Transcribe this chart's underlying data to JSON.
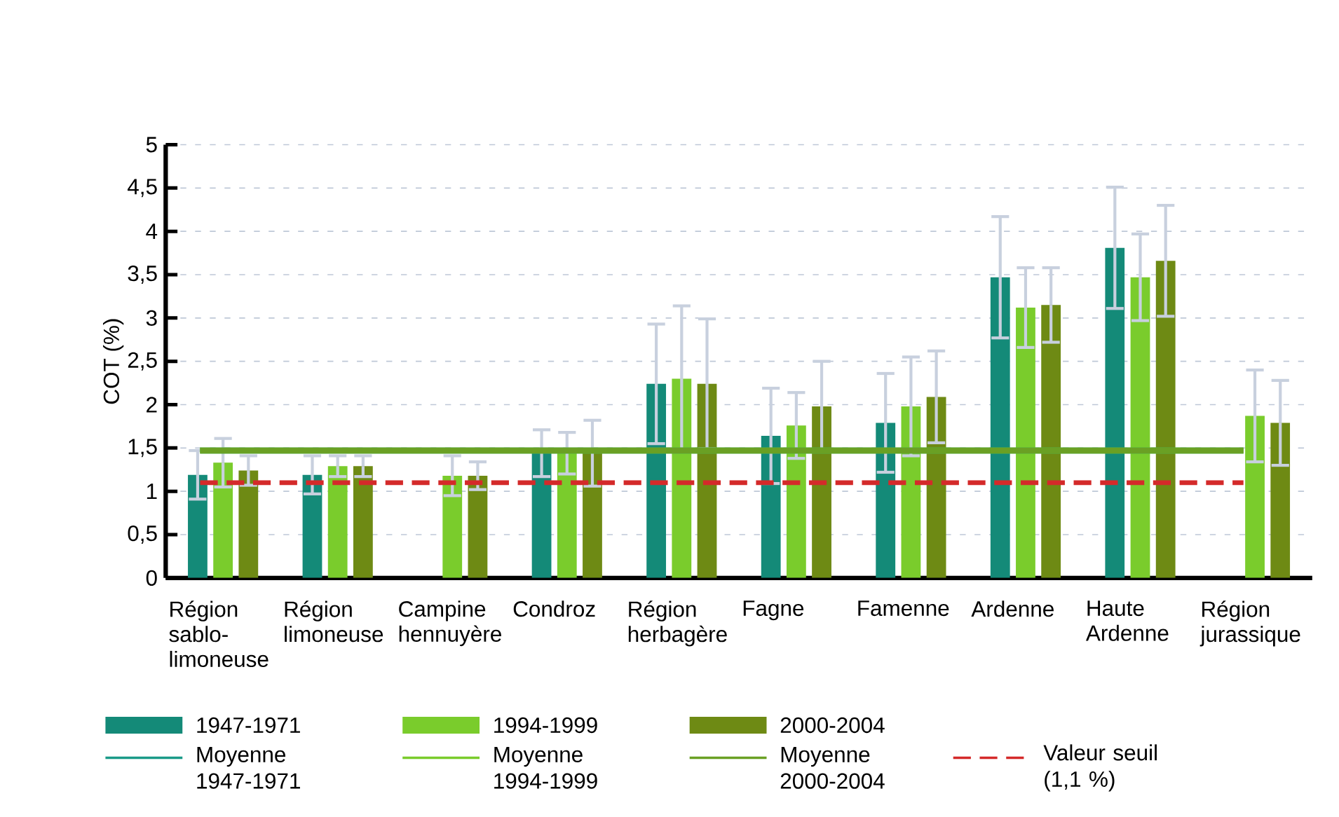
{
  "chart_data": {
    "type": "bar",
    "ylabel": "COT (%)",
    "categories": [
      "Région sablo-limoneuse",
      "Région limoneuse",
      "Campine hennuyère",
      "Condroz",
      "Région herbagère",
      "Fagne",
      "Famenne",
      "Ardenne",
      "Haute Ardenne",
      "Région jurassique"
    ],
    "series": [
      {
        "name": "1947-1971",
        "color": "#148a78",
        "values": [
          1.19,
          1.19,
          null,
          1.44,
          2.24,
          1.64,
          1.79,
          3.47,
          3.81,
          null
        ],
        "errors": [
          0.28,
          0.22,
          null,
          0.27,
          0.69,
          0.55,
          0.57,
          0.7,
          0.7,
          null
        ]
      },
      {
        "name": "1994-1999",
        "color": "#7acc2c",
        "values": [
          1.33,
          1.29,
          1.18,
          1.44,
          2.3,
          1.76,
          1.98,
          3.12,
          3.47,
          1.87
        ],
        "errors": [
          0.28,
          0.12,
          0.23,
          0.24,
          0.84,
          0.38,
          0.57,
          0.46,
          0.5,
          0.53
        ]
      },
      {
        "name": "2000-2004",
        "color": "#6e8a14",
        "values": [
          1.24,
          1.29,
          1.18,
          1.44,
          2.24,
          1.98,
          2.09,
          3.15,
          3.66,
          1.79
        ],
        "errors": [
          0.17,
          0.12,
          0.16,
          0.38,
          0.75,
          0.52,
          0.53,
          0.43,
          0.64,
          0.49
        ]
      }
    ],
    "ylim": [
      0,
      5
    ],
    "yticks": [
      0,
      {
        "value": 0.5,
        "label": "0,5"
      },
      1,
      {
        "value": 1.5,
        "label": "1,5"
      },
      2,
      {
        "value": 2.5,
        "label": "2,5"
      },
      3,
      {
        "value": 3.5,
        "label": "3,5"
      },
      4,
      {
        "value": 4.5,
        "label": "4,5"
      },
      5
    ],
    "ref_lines": [
      {
        "axis": "y",
        "value": 1.47,
        "label": "Moyenne 1947-1971",
        "color": "#1a9a88",
        "line_style": "solid"
      },
      {
        "axis": "y",
        "value": 1.47,
        "label": "Moyenne 1994-1999",
        "color": "#7acc2c",
        "line_style": "solid"
      },
      {
        "axis": "y",
        "value": 1.47,
        "label": "Moyenne 2000-2004",
        "color": "#6aa024",
        "line_style": "solid"
      },
      {
        "axis": "y",
        "value": 1.1,
        "label": "Valeur seuil (1,1 %)",
        "color": "#d42a2a",
        "line_style": "dashed"
      }
    ],
    "grid": "y",
    "legend": "bottom"
  }
}
